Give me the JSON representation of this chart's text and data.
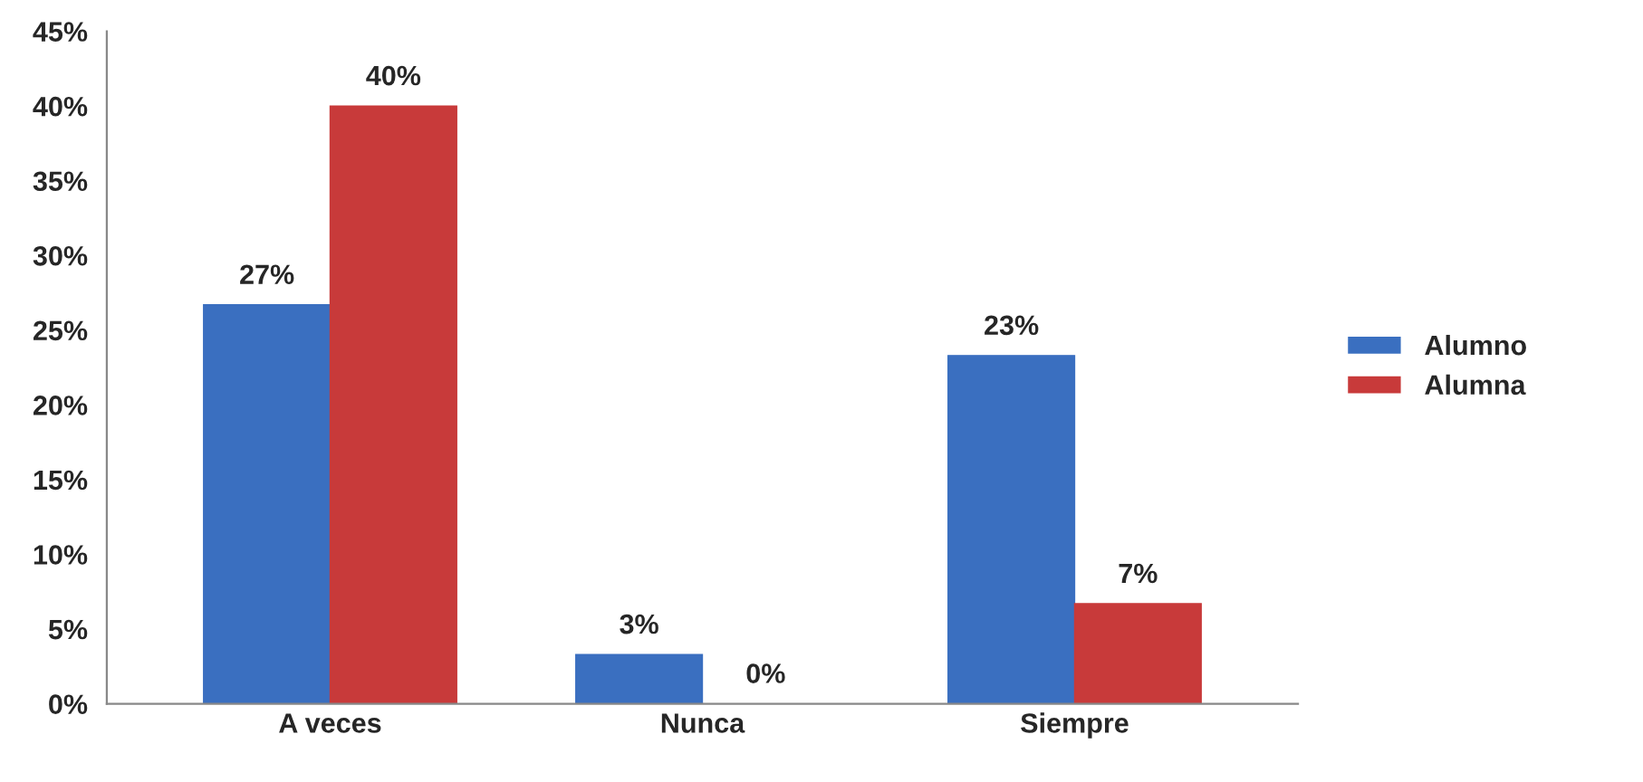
{
  "chart_data": {
    "type": "bar",
    "categories": [
      "A veces",
      "Nunca",
      "Siempre"
    ],
    "series": [
      {
        "name": "Alumno",
        "color": "#3a6fc0",
        "values": [
          26.7,
          3.3,
          23.3
        ],
        "value_labels": [
          "27%",
          "3%",
          "23%"
        ]
      },
      {
        "name": "Alumna",
        "color": "#c83a3a",
        "values": [
          40,
          0,
          6.7
        ],
        "value_labels": [
          "40%",
          "0%",
          "7%"
        ]
      }
    ],
    "ylim": [
      0,
      45
    ],
    "yticks": [
      {
        "value": 0,
        "label": "0%"
      },
      {
        "value": 5,
        "label": "5%"
      },
      {
        "value": 10,
        "label": "10%"
      },
      {
        "value": 15,
        "label": "15%"
      },
      {
        "value": 20,
        "label": "20%"
      },
      {
        "value": 25,
        "label": "25%"
      },
      {
        "value": 30,
        "label": "30%"
      },
      {
        "value": 35,
        "label": "35%"
      },
      {
        "value": 40,
        "label": "40%"
      },
      {
        "value": 45,
        "label": "45%"
      }
    ],
    "grid": false,
    "legend": "right"
  }
}
